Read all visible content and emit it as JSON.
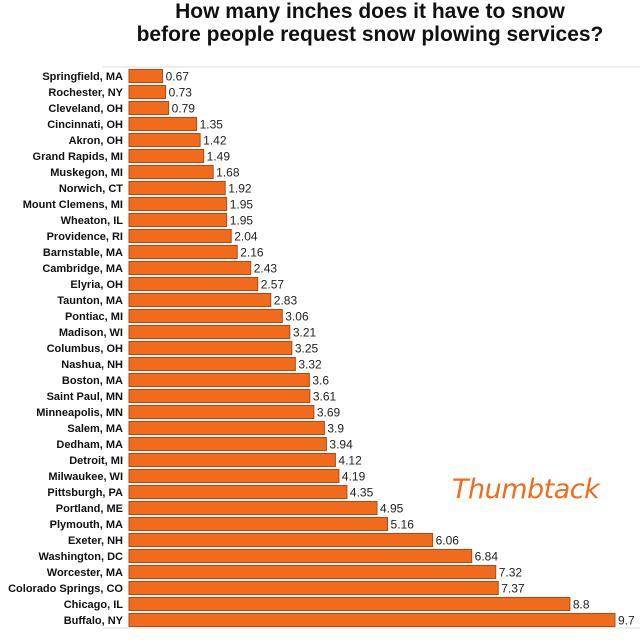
{
  "chart_data": {
    "type": "bar",
    "orientation": "horizontal",
    "title": "How many inches does it have to snow before people request snow plowing services?",
    "title_lines": [
      "How many inches does it have to snow",
      "before people request snow plowing services?"
    ],
    "xlabel": "",
    "ylabel": "",
    "xlim": [
      0,
      10
    ],
    "grid": false,
    "bar_color": "#f26a1b",
    "bar_edge_color": "#b04a10",
    "categories": [
      "Springfield, MA",
      "Rochester, NY",
      "Cleveland, OH",
      "Cincinnati, OH",
      "Akron, OH",
      "Grand Rapids, MI",
      "Muskegon, MI",
      "Norwich, CT",
      "Mount Clemens, MI",
      "Wheaton, IL",
      "Providence, RI",
      "Barnstable, MA",
      "Cambridge, MA",
      "Elyria, OH",
      "Taunton, MA",
      "Pontiac, MI",
      "Madison, WI",
      "Columbus, OH",
      "Nashua, NH",
      "Boston, MA",
      "Saint Paul, MN",
      "Minneapolis, MN",
      "Salem, MA",
      "Dedham, MA",
      "Detroit, MI",
      "Milwaukee, WI",
      "Pittsburgh, PA",
      "Portland, ME",
      "Plymouth, MA",
      "Exeter, NH",
      "Washington, DC",
      "Worcester, MA",
      "Colorado Springs, CO",
      "Chicago, IL",
      "Buffalo, NY"
    ],
    "values": [
      0.67,
      0.73,
      0.79,
      1.35,
      1.42,
      1.49,
      1.68,
      1.92,
      1.95,
      1.95,
      2.04,
      2.16,
      2.43,
      2.57,
      2.83,
      3.06,
      3.21,
      3.25,
      3.32,
      3.6,
      3.61,
      3.69,
      3.9,
      3.94,
      4.12,
      4.19,
      4.35,
      4.95,
      5.16,
      6.06,
      6.84,
      7.32,
      7.37,
      8.8,
      9.7
    ]
  },
  "logo": {
    "text": "Thumbtack",
    "color": "#f26a1b"
  }
}
